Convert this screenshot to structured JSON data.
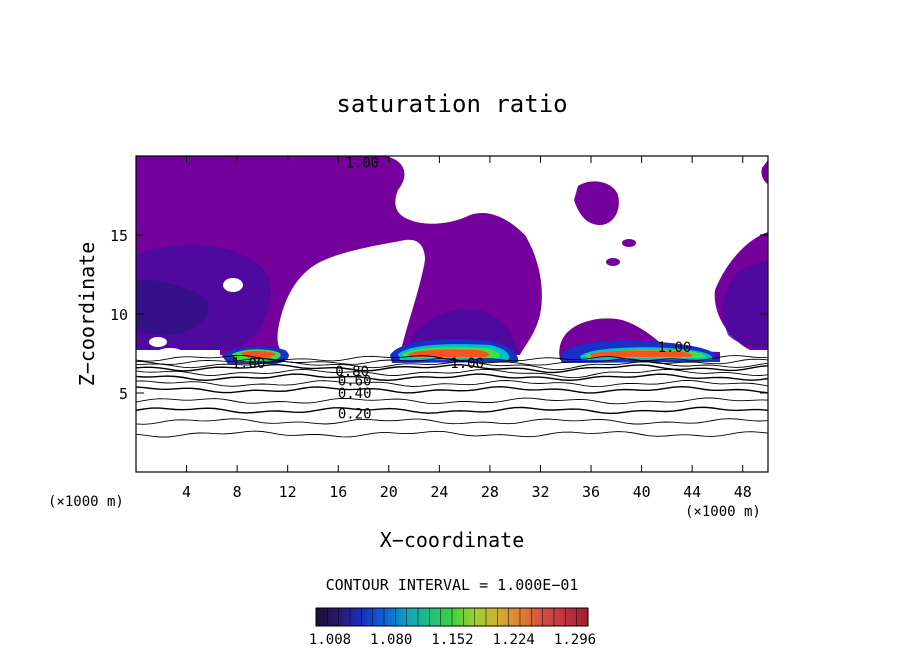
{
  "chart_data": {
    "type": "contour",
    "title": "saturation ratio",
    "xlabel": "X−coordinate",
    "ylabel": "Z−coordinate",
    "x_unit_left": "(×1000 m)",
    "x_unit_right": "(×1000 m)",
    "xlim": [
      0,
      50
    ],
    "ylim": [
      0,
      20
    ],
    "x_ticks": [
      4,
      8,
      12,
      16,
      20,
      24,
      28,
      32,
      36,
      40,
      44,
      48
    ],
    "y_ticks": [
      5,
      10,
      15
    ],
    "contour_interval_text": "CONTOUR INTERVAL = 1.000E−01",
    "line_contours": [
      {
        "level": "0.20",
        "z": 3.9
      },
      {
        "level": "0.40",
        "z": 5.2
      },
      {
        "level": "0.60",
        "z": 6.0
      },
      {
        "level": "0.80",
        "z": 6.6
      }
    ],
    "contour_labels": [
      {
        "text": "1.00",
        "x": 17.9,
        "z": 19.6
      },
      {
        "text": "1.00",
        "x": 8.9,
        "z": 6.9
      },
      {
        "text": "1.00",
        "x": 26.2,
        "z": 6.9
      },
      {
        "text": "1.00",
        "x": 42.6,
        "z": 7.9
      },
      {
        "text": "0.80",
        "x": 17.1,
        "z": 6.4
      },
      {
        "text": "0.60",
        "x": 17.3,
        "z": 5.8
      },
      {
        "text": "0.40",
        "x": 17.3,
        "z": 5.0
      },
      {
        "text": "0.20",
        "x": 17.3,
        "z": 3.7
      }
    ],
    "fill_levels": [
      {
        "value": 1.008,
        "color": "#75009c"
      },
      {
        "value": 1.03,
        "color": "#5a0aa0"
      },
      {
        "value": 1.05,
        "color": "#3c10a0"
      },
      {
        "value": 1.08,
        "color": "#1a2fc8"
      },
      {
        "value": 1.12,
        "color": "#00c0c8"
      },
      {
        "value": 1.152,
        "color": "#40e040"
      },
      {
        "value": 1.2,
        "color": "#c8e000"
      },
      {
        "value": 1.224,
        "color": "#ffb000"
      },
      {
        "value": 1.296,
        "color": "#ff5020"
      }
    ],
    "colorbar_ticks": [
      "1.008",
      "1.080",
      "1.152",
      "1.224",
      "1.296"
    ],
    "colorbar_colors": [
      "#1a1030",
      "#2a1870",
      "#1830c0",
      "#1060d0",
      "#10a0c0",
      "#20c080",
      "#40d040",
      "#a0d030",
      "#d0b030",
      "#e08030",
      "#d05040",
      "#c03040",
      "#a02030"
    ]
  }
}
